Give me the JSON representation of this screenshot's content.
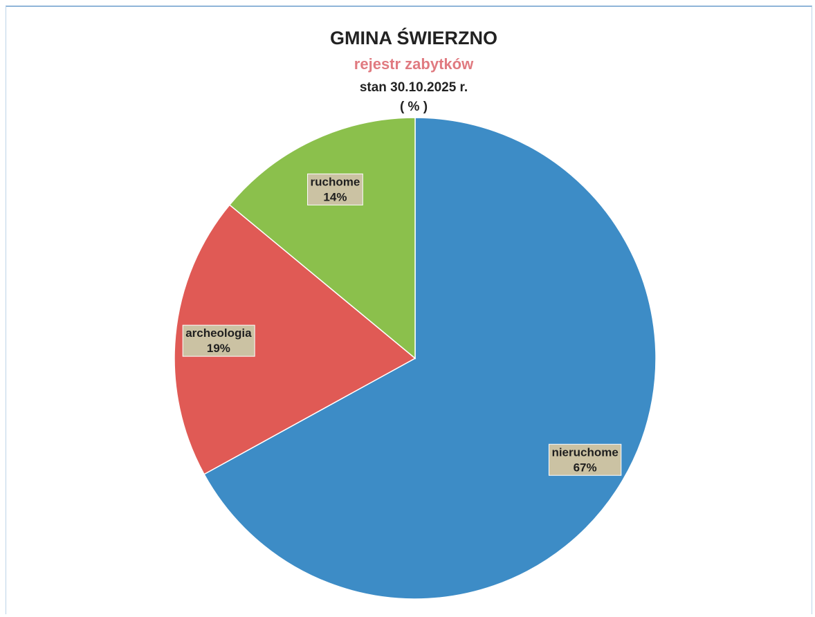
{
  "chart_data": {
    "type": "pie",
    "title": "GMINA ŚWIERZNO",
    "subtitle": "rejestr zabytków",
    "date_line": "stan 30.10.2025 r.",
    "unit_line": "( % )",
    "legend": "none",
    "slices": [
      {
        "name": "nieruchome",
        "value": 67,
        "label": "67%",
        "color": "#3d8cc6"
      },
      {
        "name": "archeologia",
        "value": 19,
        "label": "19%",
        "color": "#e05a55"
      },
      {
        "name": "ruchome",
        "value": 14,
        "label": "14%",
        "color": "#8bc04c"
      }
    ],
    "label_box_color": "#cbc2a3"
  }
}
